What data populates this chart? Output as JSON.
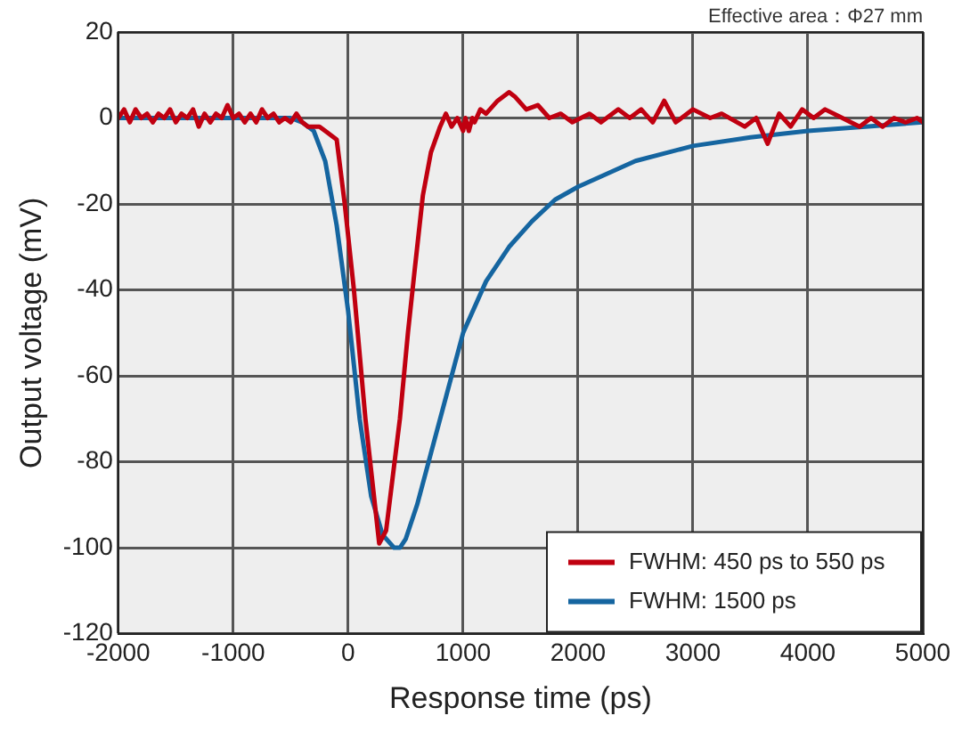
{
  "chart_data": {
    "type": "line",
    "xlabel": "Response time (ps)",
    "ylabel": "Output voltage (mV)",
    "annotations": [
      "Effective area：Φ27 mm"
    ],
    "xlim": [
      -2000,
      5000
    ],
    "xticks": [
      -2000,
      -1000,
      0,
      1000,
      2000,
      3000,
      4000,
      5000
    ],
    "ylim": [
      -120,
      20
    ],
    "yticks": [
      -120,
      -100,
      -80,
      -60,
      -40,
      -20,
      0,
      20
    ],
    "grid": true,
    "legend": "bottom right",
    "marker": "none",
    "line_style": "solid",
    "series": [
      {
        "name": "FWHM: 450 ps to 550 ps",
        "color": "#c00010",
        "x": [
          -2000,
          -1950,
          -1900,
          -1850,
          -1800,
          -1750,
          -1700,
          -1650,
          -1600,
          -1550,
          -1500,
          -1450,
          -1400,
          -1350,
          -1300,
          -1250,
          -1200,
          -1150,
          -1100,
          -1050,
          -1000,
          -950,
          -900,
          -850,
          -800,
          -750,
          -700,
          -650,
          -600,
          -550,
          -500,
          -450,
          -400,
          -350,
          -300,
          -250,
          -200,
          -100,
          -30,
          50,
          150,
          270,
          330,
          450,
          520,
          580,
          650,
          720,
          800,
          850,
          900,
          950,
          1000,
          1020,
          1050,
          1080,
          1100,
          1150,
          1200,
          1300,
          1400,
          1450,
          1550,
          1650,
          1750,
          1850,
          1950,
          2100,
          2200,
          2350,
          2450,
          2550,
          2650,
          2750,
          2850,
          3000,
          3150,
          3250,
          3450,
          3550,
          3650,
          3750,
          3850,
          3950,
          4050,
          4150,
          4300,
          4450,
          4550,
          4650,
          4750,
          4850,
          4950,
          5000
        ],
        "values": [
          0,
          2,
          -1,
          2,
          0,
          1,
          -1,
          1,
          0,
          2,
          -1,
          1,
          0,
          2,
          -2,
          1,
          -1,
          1,
          0,
          3,
          0,
          1,
          -1,
          1,
          -1,
          2,
          0,
          1,
          -1,
          0,
          -1,
          1,
          -1,
          -2,
          -2,
          -2,
          -3,
          -5,
          -20,
          -40,
          -70,
          -99,
          -96,
          -70,
          -50,
          -35,
          -18,
          -8,
          -2,
          1,
          -2,
          0,
          -3,
          0,
          -3,
          0,
          -1,
          2,
          1,
          4,
          6,
          5,
          2,
          3,
          0,
          1,
          -1,
          1,
          -1,
          2,
          0,
          2,
          -1,
          4,
          -1,
          2,
          0,
          1,
          -2,
          0,
          -6,
          1,
          -2,
          2,
          0,
          2,
          0,
          -2,
          0,
          -2,
          0,
          -1,
          0,
          -1
        ]
      },
      {
        "name": "FWHM: 1500 ps",
        "color": "#1565a0",
        "x": [
          -2000,
          -1000,
          -500,
          -400,
          -300,
          -200,
          -100,
          0,
          100,
          200,
          300,
          400,
          450,
          500,
          600,
          700,
          800,
          900,
          1000,
          1200,
          1400,
          1600,
          1800,
          2000,
          2500,
          3000,
          3500,
          4000,
          4500,
          5000
        ],
        "values": [
          0,
          0,
          0,
          -1,
          -3,
          -10,
          -25,
          -45,
          -70,
          -88,
          -97,
          -100,
          -100,
          -98,
          -90,
          -80,
          -70,
          -60,
          -50,
          -38,
          -30,
          -24,
          -19,
          -16,
          -10,
          -6.5,
          -4.5,
          -3,
          -2,
          -1
        ]
      }
    ]
  }
}
